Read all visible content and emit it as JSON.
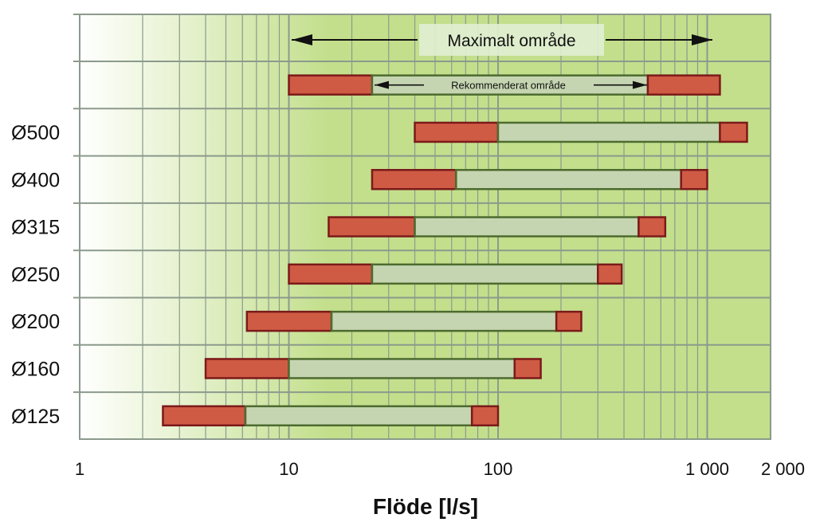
{
  "chart_data": {
    "type": "bar",
    "subtype": "horizontal-floating-range",
    "x_scale": "log",
    "xlim": [
      1,
      2000
    ],
    "x_ticks": [
      1,
      10,
      100,
      1000,
      2000
    ],
    "x_tick_labels": [
      "1",
      "10",
      "100",
      "1 000",
      "2 000"
    ],
    "xlabel": "Flöde [l/s]",
    "ylabel": "",
    "grid": true,
    "colors": {
      "max_range": "#cf5b44",
      "max_range_edge": "#7b1a1a",
      "rec_range": "#c6d5b1",
      "rec_range_edge": "#4d6b2f",
      "background_right": "#c3df8c",
      "background_left": "#ffffff",
      "grid": "#8c9a8c"
    },
    "legend": {
      "maximalt_label": "Maximalt område",
      "rekommenderat_label": "Rekommenderat område",
      "example": {
        "max_min": 10,
        "rec_min": 25,
        "rec_max": 520,
        "max_max": 1150
      }
    },
    "categories": [
      "Ø500",
      "Ø400",
      "Ø315",
      "Ø250",
      "Ø200",
      "Ø160",
      "Ø125"
    ],
    "series": [
      {
        "name": "Maximalt område",
        "ranges": [
          [
            40,
            1550
          ],
          [
            25,
            1000
          ],
          [
            15.5,
            630
          ],
          [
            10,
            390
          ],
          [
            6.3,
            250
          ],
          [
            4,
            160
          ],
          [
            2.5,
            100
          ]
        ]
      },
      {
        "name": "Rekommenderat område",
        "ranges": [
          [
            100,
            1150
          ],
          [
            63,
            750
          ],
          [
            40,
            470
          ],
          [
            25,
            300
          ],
          [
            16,
            190
          ],
          [
            10,
            120
          ],
          [
            6.2,
            75
          ]
        ]
      }
    ]
  }
}
